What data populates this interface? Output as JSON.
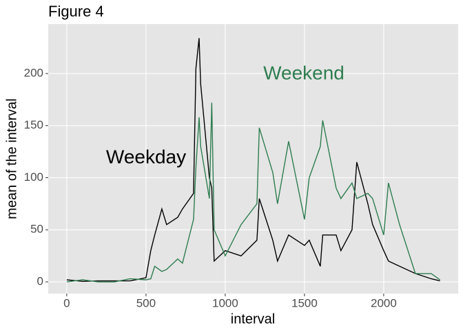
{
  "chart_data": {
    "type": "line",
    "title": "Figure 4",
    "xlabel": "interval",
    "ylabel": "mean of the interval",
    "x": [
      0,
      100,
      200,
      300,
      400,
      500,
      530,
      555,
      600,
      630,
      700,
      730,
      800,
      815,
      835,
      845,
      900,
      915,
      930,
      1000,
      1100,
      1200,
      1215,
      1300,
      1330,
      1400,
      1500,
      1530,
      1600,
      1615,
      1700,
      1730,
      1800,
      1830,
      1900,
      1930,
      2000,
      2030,
      2100,
      2200,
      2300,
      2355
    ],
    "series": [
      {
        "name": "Weekday",
        "color": "#000000",
        "values": [
          2,
          0.5,
          1,
          1,
          1,
          4,
          30,
          45,
          70,
          55,
          62,
          70,
          85,
          205,
          234,
          190,
          100,
          90,
          20,
          30,
          25,
          40,
          80,
          40,
          20,
          45,
          35,
          40,
          15,
          45,
          45,
          30,
          50,
          115,
          75,
          55,
          30,
          20,
          15,
          8,
          3,
          1
        ]
      },
      {
        "name": "Weekend",
        "color": "#2e7d4f",
        "values": [
          0,
          2,
          0,
          0,
          3,
          2,
          3,
          15,
          10,
          12,
          22,
          18,
          60,
          110,
          158,
          130,
          80,
          172,
          50,
          25,
          55,
          75,
          148,
          105,
          75,
          135,
          60,
          100,
          130,
          155,
          90,
          80,
          95,
          80,
          85,
          80,
          45,
          95,
          55,
          8,
          8,
          2
        ]
      }
    ],
    "xlim": [
      -117,
      2470
    ],
    "ylim": [
      -11.2,
      247.5
    ],
    "xticks": [
      0,
      500,
      1000,
      1500,
      2000
    ],
    "yticks": [
      0,
      50,
      100,
      150,
      200
    ],
    "grid": true
  }
}
